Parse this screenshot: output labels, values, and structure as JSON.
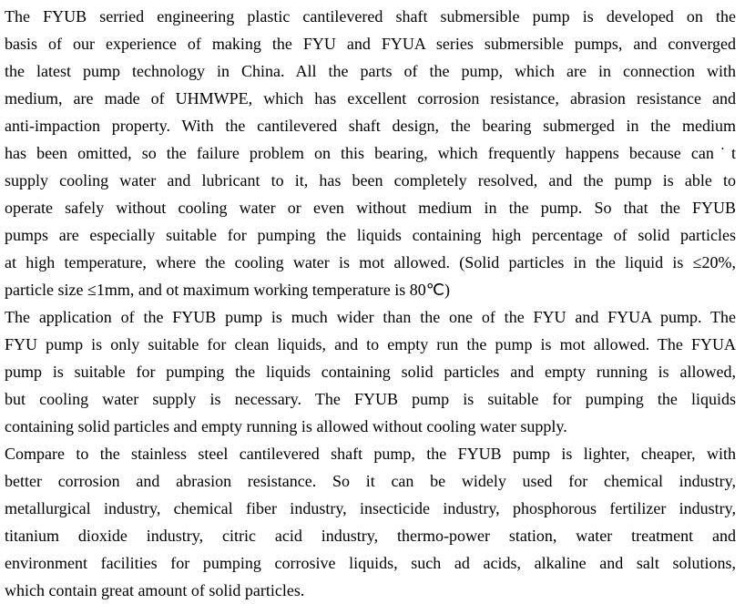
{
  "paragraphs": [
    {
      "lines": [
        "The FYUB serried engineering plastic cantilevered shaft submersible pump is developed on the",
        "basis of our experience of making the FYU and FYUA series submersible pumps, and converged",
        "the latest pump technology in China. All the parts of the pump, which are in connection with",
        "medium, are made of UHMWPE, which has excellent corrosion resistance, abrasion resistance and",
        "anti-impaction property. With the cantilevered shaft design, the bearing submerged in the medium",
        "has been omitted, so the failure problem on this bearing, which frequently happens because can˙t",
        "supply cooling water and lubricant to it, has been completely resolved, and the pump is able to",
        "operate safely without cooling water or even without medium in the pump. So that the FYUB",
        "pumps are especially suitable for pumping the liquids containing high percentage of solid particles",
        "at high temperature, where the cooling water is mot allowed. (Solid particles in the liquid is ≤20%,",
        "particle size ≤1mm, and ot maximum working temperature is 80℃)"
      ]
    },
    {
      "lines": [
        "The application of the FYUB pump is much wider than the one of the FYU and FYUA pump. The",
        "FYU pump is only suitable for clean liquids, and to empty run the pump is mot allowed. The FYUA",
        "pump is suitable for pumping the liquids containing solid particles and empty running is allowed,",
        "but cooling water supply is necessary. The FYUB pump is suitable for pumping the liquids",
        "containing solid particles and empty running is allowed without cooling water supply."
      ]
    },
    {
      "lines": [
        "Compare to the stainless steel cantilevered shaft pump, the FYUB pump is lighter, cheaper, with",
        "better corrosion and abrasion resistance. So it can be widely used for chemical industry,",
        "metallurgical industry, chemical fiber industry, insecticide industry, phosphorous fertilizer industry,",
        "titanium dioxide industry, citric acid industry, thermo-power station, water treatment and",
        "environment facilities for pumping corrosive liquids, such ad acids, alkaline and salt solutions,",
        "which contain great amount of solid particles."
      ]
    }
  ]
}
